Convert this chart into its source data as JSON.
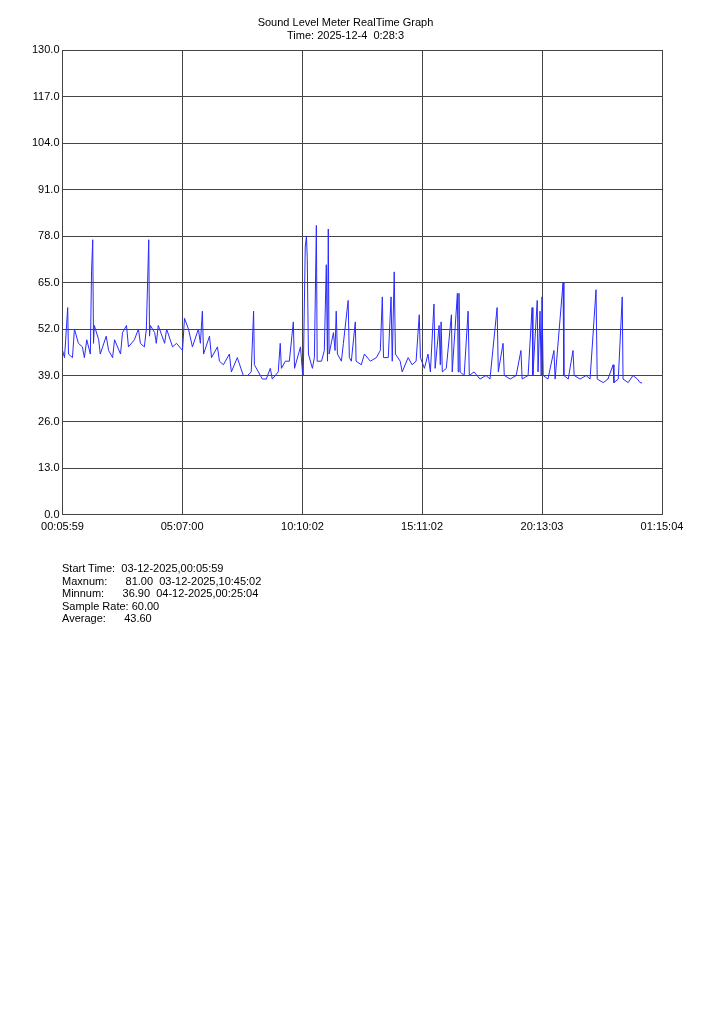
{
  "chart_data": {
    "type": "line",
    "title": "Sound Level Meter RealTime Graph",
    "subtitle": "Time: 2025-12-4  0:28:3",
    "xlim": [
      "2025-12-03T00:05:59",
      "2025-12-04T01:15:04"
    ],
    "xticks": [
      {
        "value": "2025-12-03T00:05:59",
        "label": "00:05:59"
      },
      {
        "value": "2025-12-03T05:07:00",
        "label": "05:07:00"
      },
      {
        "value": "2025-12-03T10:10:02",
        "label": "10:10:02"
      },
      {
        "value": "2025-12-03T15:11:02",
        "label": "15:11:02"
      },
      {
        "value": "2025-12-03T20:13:03",
        "label": "20:13:03"
      },
      {
        "value": "2025-12-04T01:15:04",
        "label": "01:15:04"
      }
    ],
    "ylim": [
      0,
      130
    ],
    "yticks": [
      {
        "value": 0,
        "label": "0.0"
      },
      {
        "value": 13,
        "label": "13.0"
      },
      {
        "value": 26,
        "label": "26.0"
      },
      {
        "value": 39,
        "label": "39.0"
      },
      {
        "value": 52,
        "label": "52.0"
      },
      {
        "value": 65,
        "label": "65.0"
      },
      {
        "value": 78,
        "label": "78.0"
      },
      {
        "value": 91,
        "label": "91.0"
      },
      {
        "value": 104,
        "label": "104.0"
      },
      {
        "value": 117,
        "label": "117.0"
      },
      {
        "value": 130,
        "label": "130.0"
      }
    ],
    "grid": true,
    "legend": false,
    "marker": "none",
    "line_style": "solid",
    "series": [
      {
        "color": "#2a2aff",
        "x": [
          "2025-12-03T00:06",
          "2025-12-03T00:11",
          "2025-12-03T00:19",
          "2025-12-03T00:21",
          "2025-12-03T00:31",
          "2025-12-03T00:36",
          "2025-12-03T00:46",
          "2025-12-03T00:56",
          "2025-12-03T01:01",
          "2025-12-03T01:07",
          "2025-12-03T01:16",
          "2025-12-03T01:19",
          "2025-12-03T01:22",
          "2025-12-03T01:24",
          "2025-12-03T01:26",
          "2025-12-03T01:37",
          "2025-12-03T01:41",
          "2025-12-03T01:56",
          "2025-12-03T02:02",
          "2025-12-03T02:12",
          "2025-12-03T02:17",
          "2025-12-03T02:32",
          "2025-12-03T02:37",
          "2025-12-03T02:47",
          "2025-12-03T02:52",
          "2025-12-03T03:07",
          "2025-12-03T03:17",
          "2025-12-03T03:22",
          "2025-12-03T03:32",
          "2025-12-03T03:37",
          "2025-12-03T03:43",
          "2025-12-03T03:45",
          "2025-12-03T03:47",
          "2025-12-03T03:58",
          "2025-12-03T04:02",
          "2025-12-03T04:07",
          "2025-12-03T04:23",
          "2025-12-03T04:28",
          "2025-12-03T04:43",
          "2025-12-03T04:53",
          "2025-12-03T05:08",
          "2025-12-03T05:13",
          "2025-12-03T05:23",
          "2025-12-03T05:33",
          "2025-12-03T05:48",
          "2025-12-03T05:53",
          "2025-12-03T05:58",
          "2025-12-03T06:01",
          "2025-12-03T06:16",
          "2025-12-03T06:21",
          "2025-12-03T06:36",
          "2025-12-03T06:41",
          "2025-12-03T06:51",
          "2025-12-03T07:06",
          "2025-12-03T07:11",
          "2025-12-03T07:26",
          "2025-12-03T07:41",
          "2025-12-03T07:52",
          "2025-12-03T08:01",
          "2025-12-03T08:07",
          "2025-12-03T08:09",
          "2025-12-03T08:29",
          "2025-12-03T08:39",
          "2025-12-03T08:49",
          "2025-12-03T08:54",
          "2025-12-03T09:09",
          "2025-12-03T09:14",
          "2025-12-03T09:17",
          "2025-12-03T09:27",
          "2025-12-03T09:37",
          "2025-12-03T09:47",
          "2025-12-03T09:50",
          "2025-12-03T10:05",
          "2025-12-03T10:10",
          "2025-12-03T10:12",
          "2025-12-03T10:17",
          "2025-12-03T10:20",
          "2025-12-03T10:22",
          "2025-12-03T10:25",
          "2025-12-03T10:35",
          "2025-12-03T10:40",
          "2025-12-03T10:45",
          "2025-12-03T10:47",
          "2025-12-03T10:58",
          "2025-12-03T11:05",
          "2025-12-03T11:10",
          "2025-12-03T11:13",
          "2025-12-03T11:15",
          "2025-12-03T11:17",
          "2025-12-03T11:28",
          "2025-12-03T11:32",
          "2025-12-03T11:35",
          "2025-12-03T11:38",
          "2025-12-03T11:48",
          "2025-12-03T11:53",
          "2025-12-03T12:05",
          "2025-12-03T12:08",
          "2025-12-03T12:13",
          "2025-12-03T12:23",
          "2025-12-03T12:25",
          "2025-12-03T12:38",
          "2025-12-03T12:46",
          "2025-12-03T13:01",
          "2025-12-03T13:16",
          "2025-12-03T13:26",
          "2025-12-03T13:31",
          "2025-12-03T13:34",
          "2025-12-03T13:46",
          "2025-12-03T13:53",
          "2025-12-03T13:56",
          "2025-12-03T14:01",
          "2025-12-03T14:04",
          "2025-12-03T14:16",
          "2025-12-03T14:21",
          "2025-12-03T14:36",
          "2025-12-03T14:46",
          "2025-12-03T14:56",
          "2025-12-03T15:04",
          "2025-12-03T15:07",
          "2025-12-03T15:17",
          "2025-12-03T15:26",
          "2025-12-03T15:32",
          "2025-12-03T15:41",
          "2025-12-03T15:44",
          "2025-12-03T15:54",
          "2025-12-03T15:57",
          "2025-12-03T15:59",
          "2025-12-03T16:02",
          "2025-12-03T16:12",
          "2025-12-03T16:25",
          "2025-12-03T16:27",
          "2025-12-03T16:40",
          "2025-12-03T16:42",
          "2025-12-03T16:44",
          "2025-12-03T16:47",
          "2025-12-03T16:57",
          "2025-12-03T17:07",
          "2025-12-03T17:10",
          "2025-12-03T17:22",
          "2025-12-03T17:37",
          "2025-12-03T17:52",
          "2025-12-03T18:02",
          "2025-12-03T18:20",
          "2025-12-03T18:23",
          "2025-12-03T18:35",
          "2025-12-03T18:38",
          "2025-12-03T18:53",
          "2025-12-03T19:08",
          "2025-12-03T19:20",
          "2025-12-03T19:23",
          "2025-12-03T19:38",
          "2025-12-03T19:48",
          "2025-12-03T19:50",
          "2025-12-03T20:01",
          "2025-12-03T20:03",
          "2025-12-03T20:08",
          "2025-12-03T20:11",
          "2025-12-03T20:13",
          "2025-12-03T20:16",
          "2025-12-03T20:28",
          "2025-12-03T20:43",
          "2025-12-03T20:46",
          "2025-12-03T21:06",
          "2025-12-03T21:08",
          "2025-12-03T21:19",
          "2025-12-03T21:31",
          "2025-12-03T21:34",
          "2025-12-03T21:49",
          "2025-12-03T22:04",
          "2025-12-03T22:14",
          "2025-12-03T22:29",
          "2025-12-03T22:32",
          "2025-12-03T22:47",
          "2025-12-03T22:59",
          "2025-12-03T23:12",
          "2025-12-03T23:14",
          "2025-12-03T23:25",
          "2025-12-03T23:35",
          "2025-12-03T23:37",
          "2025-12-03T23:50",
          "2025-12-04T00:02",
          "2025-12-04T00:13",
          "2025-12-04T00:20",
          "2025-12-04T00:25"
        ],
        "values": [
          46,
          44,
          58,
          45,
          44,
          52,
          48,
          47,
          44,
          49,
          45,
          68,
          77,
          48,
          53,
          49,
          45,
          50,
          46,
          44,
          49,
          45,
          51,
          53,
          47,
          49,
          52,
          48,
          47,
          52,
          77,
          50,
          53,
          51,
          48,
          53,
          48,
          52,
          47,
          48,
          46,
          55,
          52,
          47,
          52,
          48,
          57,
          45,
          50,
          44,
          47,
          43,
          42,
          45,
          40,
          44,
          39,
          39,
          40,
          57,
          42,
          38,
          38,
          41,
          38,
          40,
          48,
          41,
          43,
          43,
          54,
          41,
          47,
          40,
          39,
          75,
          78,
          72,
          45,
          41,
          44,
          81,
          43,
          43,
          46,
          70,
          43,
          80,
          45,
          51,
          46,
          57,
          45,
          43,
          48,
          60,
          44,
          43,
          54,
          43,
          42,
          45,
          43,
          44,
          46,
          61,
          44,
          44,
          61,
          43,
          68,
          45,
          43,
          40,
          44,
          42,
          43,
          56,
          44,
          41,
          45,
          40,
          59,
          41,
          53,
          42,
          54,
          40,
          41,
          56,
          40,
          62,
          40,
          62,
          40,
          39,
          57,
          39,
          40,
          38,
          39,
          38,
          58,
          40,
          48,
          39,
          38,
          39,
          46,
          38,
          39,
          58,
          39,
          60,
          40,
          57,
          39,
          61,
          39,
          38,
          46,
          38,
          65,
          39,
          38,
          46,
          39,
          38,
          39,
          38,
          63,
          38,
          37,
          38,
          42,
          37,
          38,
          61,
          38,
          37,
          39,
          38,
          37,
          36.9
        ]
      }
    ],
    "annotations": [
      "Start Time:  03-12-2025,00:05:59",
      "Maxnum:      81.00  03-12-2025,10:45:02",
      "Minnum:      36.90  04-12-2025,00:25:04",
      "Sample Rate: 60.00",
      "Average:      43.60"
    ]
  }
}
